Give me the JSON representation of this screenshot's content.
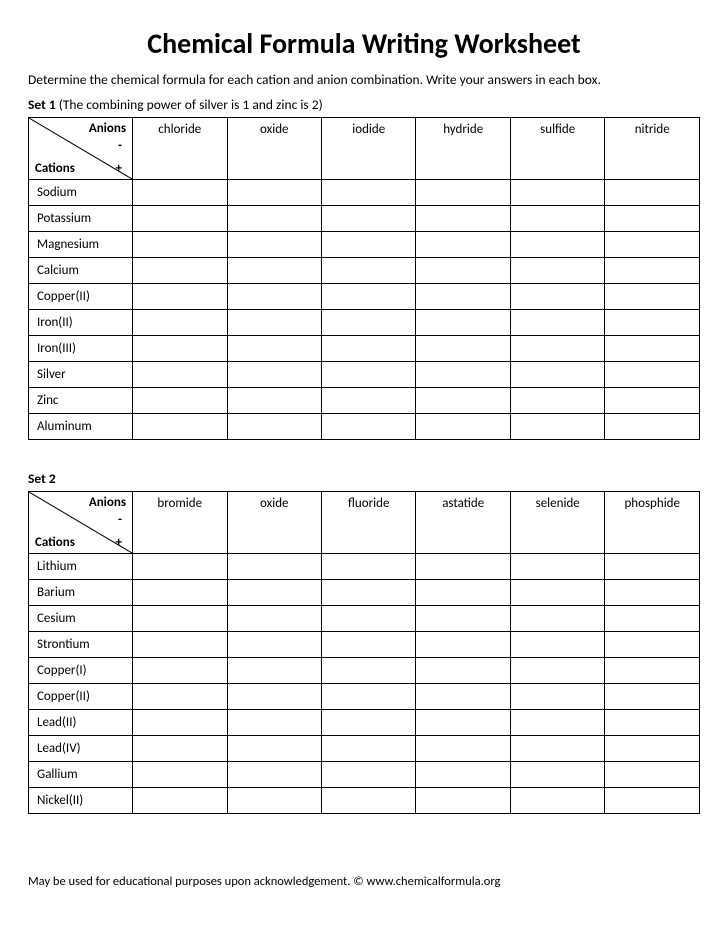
{
  "title": "Chemical Formula Writing Worksheet",
  "instructions": "Determine the chemical formula for each cation and anion combination. Write your answers in each box.",
  "corner": {
    "anions": "Anions",
    "cations": "Cations",
    "plus": "+",
    "minus": "-"
  },
  "set1": {
    "label_bold": "Set 1",
    "label_rest": " (The combining power of silver is 1 and zinc is 2)",
    "anions": [
      "chloride",
      "oxide",
      "iodide",
      "hydride",
      "sulfide",
      "nitride"
    ],
    "cations": [
      "Sodium",
      "Potassium",
      "Magnesium",
      "Calcium",
      "Copper(II)",
      "Iron(II)",
      "Iron(III)",
      "Silver",
      "Zinc",
      "Aluminum"
    ]
  },
  "set2": {
    "label_bold": "Set 2",
    "label_rest": "",
    "anions": [
      "bromide",
      "oxide",
      "fluoride",
      "astatide",
      "selenide",
      "phosphide"
    ],
    "cations": [
      "Lithium",
      "Barium",
      "Cesium",
      "Strontium",
      "Copper(I)",
      "Copper(II)",
      "Lead(II)",
      "Lead(IV)",
      "Gallium",
      "Nickel(II)"
    ]
  },
  "footer": "May be used for educational purposes upon acknowledgement. © www.chemicalformula.org",
  "colors": {
    "text": "#000000",
    "border": "#000000",
    "background": "#ffffff"
  }
}
